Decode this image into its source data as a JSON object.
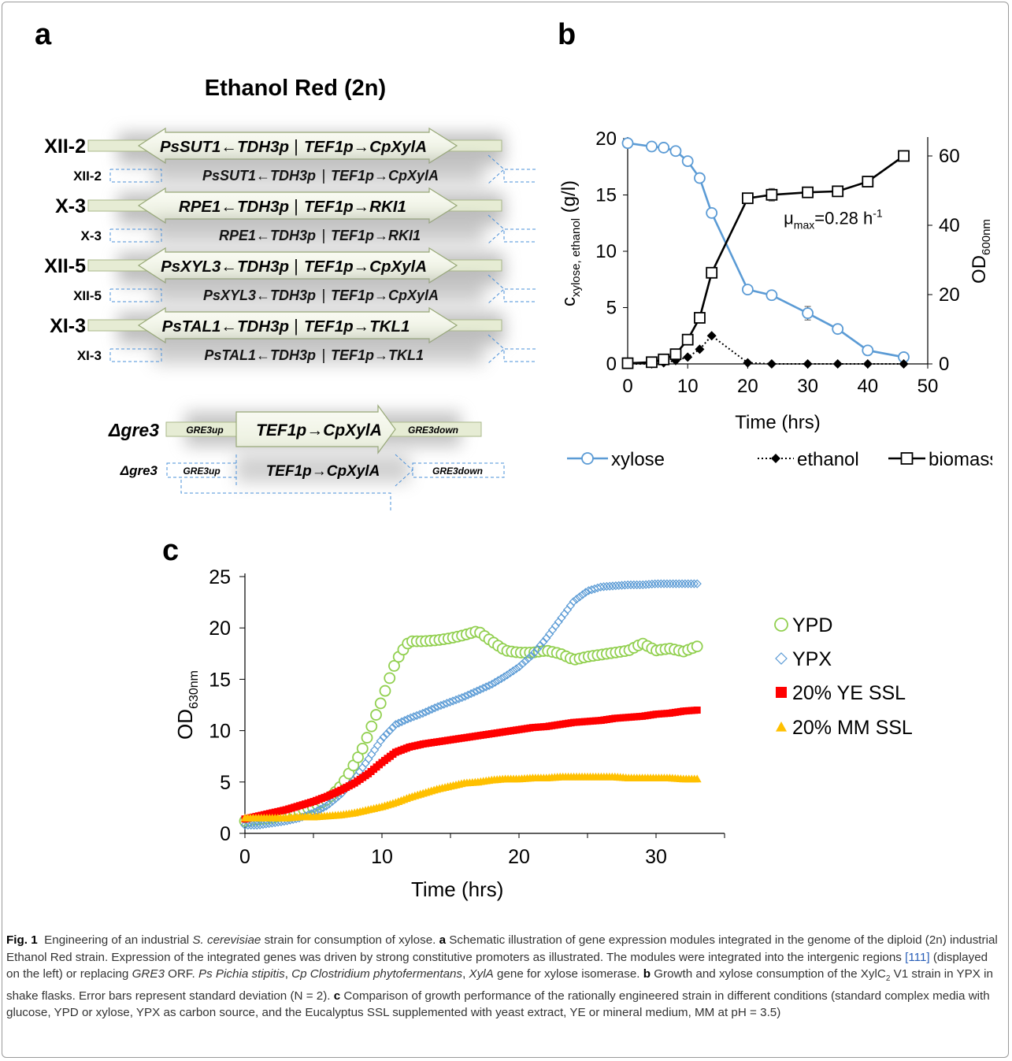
{
  "panels": {
    "a": "a",
    "b": "b",
    "c": "c"
  },
  "panel_a": {
    "title": "Ethanol Red (2n)",
    "modules": [
      {
        "locus": "XII-2",
        "left": "PsSUT1←TDH3p",
        "right": "TEF1p→CpXylA"
      },
      {
        "locus": "X-3",
        "left": "RPE1←TDH3p",
        "right": "TEF1p→RKI1"
      },
      {
        "locus": "XII-5",
        "left": "PsXYL3←TDH3p",
        "right": "TEF1p→CpXylA"
      },
      {
        "locus": "XI-3",
        "left": "PsTAL1←TDH3p",
        "right": "TEF1p→TKL1"
      }
    ],
    "gre3": {
      "locus": "Δgre3",
      "up": "GRE3up",
      "center": "TEF1p→CpXylA",
      "down": "GRE3down"
    },
    "separator": "|"
  },
  "chart_data": [
    {
      "type": "line",
      "panel": "b",
      "xlabel": "Time (hrs)",
      "ylabel": "c_xylose, ethanol (g/l)",
      "ylabel_parts": {
        "main": "c",
        "sub": "xylose, ethanol",
        "unit": "(g/l)"
      },
      "y2label": "OD600nm",
      "y2label_parts": {
        "main": "OD",
        "sub": "600nm"
      },
      "xlim": [
        0,
        50
      ],
      "ylim": [
        0,
        20
      ],
      "y2lim": [
        0,
        65
      ],
      "xticks": [
        "0",
        "10",
        "20",
        "30",
        "40",
        "50"
      ],
      "yticks": [
        "0",
        "5",
        "10",
        "15",
        "20"
      ],
      "y2ticks": [
        "0",
        "20",
        "40",
        "60"
      ],
      "annotation": {
        "main": "μ",
        "sub": "max",
        "text": "=0.28 h",
        "sup": "-1"
      },
      "legend_position": "bottom",
      "series": [
        {
          "name": "xylose",
          "axis": "left",
          "color": "#5b9bd5",
          "marker": "circle-open",
          "line": "solid",
          "x": [
            0,
            4,
            6,
            8,
            10,
            12,
            14,
            20,
            24,
            30,
            35,
            40,
            46
          ],
          "y": [
            19.6,
            19.3,
            19.2,
            18.9,
            18.0,
            16.5,
            13.4,
            6.6,
            6.1,
            4.5,
            3.1,
            1.2,
            0.6
          ],
          "err": [
            0,
            0,
            0,
            0,
            0,
            0,
            0,
            0,
            0,
            0.6,
            0,
            0,
            0
          ]
        },
        {
          "name": "ethanol",
          "axis": "left",
          "color": "#000000",
          "marker": "diamond-filled",
          "line": "dotted",
          "x": [
            0,
            4,
            6,
            8,
            10,
            12,
            14,
            20,
            24,
            30,
            35,
            40,
            46
          ],
          "y": [
            0,
            0,
            0.1,
            0.3,
            0.6,
            1.3,
            2.5,
            0.1,
            0.0,
            0.0,
            0.0,
            0.0,
            0.0
          ]
        },
        {
          "name": "biomass (OD)",
          "axis": "right",
          "color": "#000000",
          "marker": "square-open",
          "line": "solid",
          "x": [
            0,
            4,
            6,
            8,
            10,
            12,
            14,
            20,
            24,
            30,
            35,
            40,
            46
          ],
          "y": [
            0.2,
            0.5,
            1.3,
            2.8,
            7.0,
            13.3,
            26.3,
            47.8,
            48.8,
            49.5,
            49.8,
            52.6,
            60.0
          ],
          "err": [
            0,
            0,
            0,
            0,
            0,
            0,
            0,
            0,
            1.8,
            1.5,
            1.0,
            0,
            0
          ]
        }
      ]
    },
    {
      "type": "scatter",
      "panel": "c",
      "xlabel": "Time (hrs)",
      "ylabel": "OD630nm",
      "ylabel_parts": {
        "main": "OD",
        "sub": "630nm"
      },
      "xlim": [
        0,
        35
      ],
      "ylim": [
        0,
        25
      ],
      "xticks": [
        "0",
        "10",
        "20",
        "30"
      ],
      "yticks": [
        "0",
        "5",
        "10",
        "15",
        "20",
        "25"
      ],
      "legend_position": "right",
      "series": [
        {
          "name": "YPD",
          "color": "#92d050",
          "marker": "circle-open",
          "x": [
            0,
            2,
            4,
            5,
            6,
            6.5,
            7,
            7.5,
            8,
            8.5,
            9,
            9.5,
            10,
            10.5,
            11,
            11.5,
            12,
            13,
            14,
            15,
            16,
            17,
            18,
            19,
            20,
            21,
            22,
            23,
            24,
            25,
            26,
            27,
            28,
            29,
            30,
            31,
            32,
            33
          ],
          "y": [
            1.2,
            1.5,
            2.2,
            2.6,
            3.3,
            3.9,
            4.6,
            5.6,
            6.8,
            8.0,
            9.6,
            11.3,
            13.0,
            14.9,
            16.7,
            17.8,
            18.7,
            18.7,
            18.8,
            19.0,
            19.3,
            19.7,
            18.7,
            17.8,
            17.6,
            17.6,
            17.8,
            17.5,
            16.9,
            17.2,
            17.4,
            17.6,
            17.8,
            18.5,
            17.8,
            18.0,
            17.7,
            18.2
          ]
        },
        {
          "name": "YPX",
          "color": "#5b9bd5",
          "marker": "diamond-open",
          "x": [
            0,
            1,
            2,
            3,
            4,
            5,
            6,
            7,
            8,
            9,
            10,
            11,
            12,
            13,
            14,
            15,
            16,
            17,
            18,
            19,
            20,
            21,
            22,
            23,
            24,
            25,
            26,
            27,
            28,
            29,
            30,
            31,
            32,
            33
          ],
          "y": [
            0.8,
            0.8,
            1.0,
            1.2,
            1.5,
            2.0,
            2.7,
            3.8,
            5.3,
            7.2,
            9.2,
            10.6,
            11.2,
            11.7,
            12.3,
            12.8,
            13.3,
            13.9,
            14.5,
            15.3,
            16.2,
            17.4,
            19.0,
            20.8,
            22.6,
            23.6,
            24.0,
            24.1,
            24.2,
            24.2,
            24.3,
            24.3,
            24.3,
            24.3
          ]
        },
        {
          "name": "20% YE SSL",
          "color": "#ff0000",
          "marker": "square-filled",
          "x": [
            0,
            1,
            2,
            3,
            4,
            5,
            6,
            7,
            8,
            9,
            10,
            11,
            12,
            13,
            14,
            15,
            16,
            17,
            18,
            19,
            20,
            21,
            22,
            23,
            24,
            25,
            26,
            27,
            28,
            29,
            30,
            31,
            32,
            33
          ],
          "y": [
            1.4,
            1.7,
            2.0,
            2.3,
            2.7,
            3.1,
            3.6,
            4.2,
            4.9,
            5.8,
            6.9,
            7.9,
            8.4,
            8.7,
            8.9,
            9.1,
            9.3,
            9.5,
            9.7,
            9.9,
            10.1,
            10.3,
            10.4,
            10.6,
            10.8,
            10.9,
            11.0,
            11.2,
            11.3,
            11.4,
            11.6,
            11.7,
            11.9,
            12.0
          ]
        },
        {
          "name": "20% MM SSL",
          "color": "#ffc000",
          "marker": "triangle-filled",
          "x": [
            0,
            1,
            2,
            3,
            4,
            5,
            6,
            7,
            8,
            9,
            10,
            11,
            12,
            13,
            14,
            15,
            16,
            17,
            18,
            19,
            20,
            21,
            22,
            23,
            24,
            25,
            26,
            27,
            28,
            29,
            30,
            31,
            32,
            33
          ],
          "y": [
            1.5,
            1.5,
            1.5,
            1.5,
            1.6,
            1.6,
            1.7,
            1.8,
            2.0,
            2.3,
            2.6,
            3.0,
            3.5,
            3.9,
            4.3,
            4.6,
            4.9,
            5.0,
            5.2,
            5.3,
            5.3,
            5.4,
            5.4,
            5.5,
            5.5,
            5.5,
            5.5,
            5.5,
            5.4,
            5.4,
            5.4,
            5.4,
            5.3,
            5.3
          ]
        }
      ]
    }
  ],
  "caption": {
    "fig": "Fig. 1",
    "s1": "Engineering of an industrial ",
    "species": "S. cerevisiae",
    "s2": " strain for consumption of xylose. ",
    "a": "a",
    "s3": " Schematic illustration of gene expression modules integrated in the genome of the diploid (2n) industrial Ethanol Red strain. Expression of the integrated genes was driven by strong constitutive promoters as illustrated. The modules were integrated into the intergenic regions ",
    "ref": "[111]",
    "s4": " (displayed on the left) or replacing ",
    "gre3": "GRE3",
    "s5": " ORF. ",
    "ps": "Ps Pichia stipitis",
    "s6": ", ",
    "cp": "Cp Clostridium phytofermentans",
    "s7": ", ",
    "xyla": "XylA",
    "s8": " gene for xylose isomerase. ",
    "b": "b",
    "s9": " Growth and xylose consumption of the XylC",
    "sub2": "2",
    "s10": " V1 strain in YPX in shake flasks. Error bars represent standard deviation (N = 2). ",
    "c": "c",
    "s11": " Comparison of growth performance of the rationally engineered strain in different conditions (standard complex media with glucose, YPD or xylose, YPX as carbon source, and the Eucalyptus SSL supplemented with yeast extract, YE or mineral medium, MM at pH = 3.5)"
  }
}
